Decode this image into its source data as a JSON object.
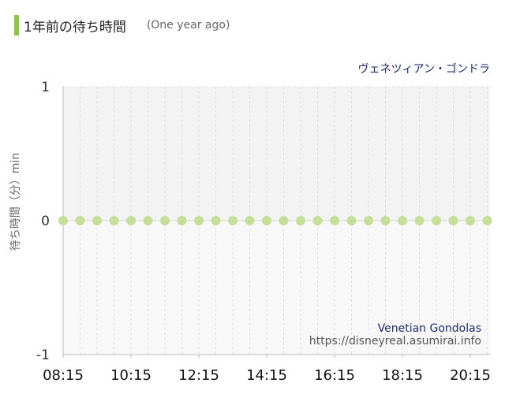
{
  "header": {
    "title": "1年前の待ち時間",
    "subtitle": "(One year ago)",
    "accent_color": "#8cc63f"
  },
  "chart_data": {
    "type": "scatter",
    "attraction_ja": "ヴェネツィアン・ゴンドラ",
    "attraction_en": "Venetian Gondolas",
    "source": "https://disneyreal.asumirai.info",
    "ylabel": "待ち時間（分）min",
    "ylim": [
      -1,
      1
    ],
    "yticks": [
      "1",
      "0",
      "-1"
    ],
    "xticks": [
      "08:15",
      "10:15",
      "12:15",
      "14:15",
      "16:15",
      "18:15",
      "20:15"
    ],
    "x": [
      "08:15",
      "08:45",
      "09:15",
      "09:45",
      "10:15",
      "10:45",
      "11:15",
      "11:45",
      "12:15",
      "12:45",
      "13:15",
      "13:45",
      "14:15",
      "14:45",
      "15:15",
      "15:45",
      "16:15",
      "16:45",
      "17:15",
      "17:45",
      "18:15",
      "18:45",
      "19:15",
      "19:45",
      "20:15",
      "20:45"
    ],
    "values": [
      0,
      0,
      0,
      0,
      0,
      0,
      0,
      0,
      0,
      0,
      0,
      0,
      0,
      0,
      0,
      0,
      0,
      0,
      0,
      0,
      0,
      0,
      0,
      0,
      0,
      0
    ],
    "point_color": "#c5df9a",
    "grid": true
  }
}
